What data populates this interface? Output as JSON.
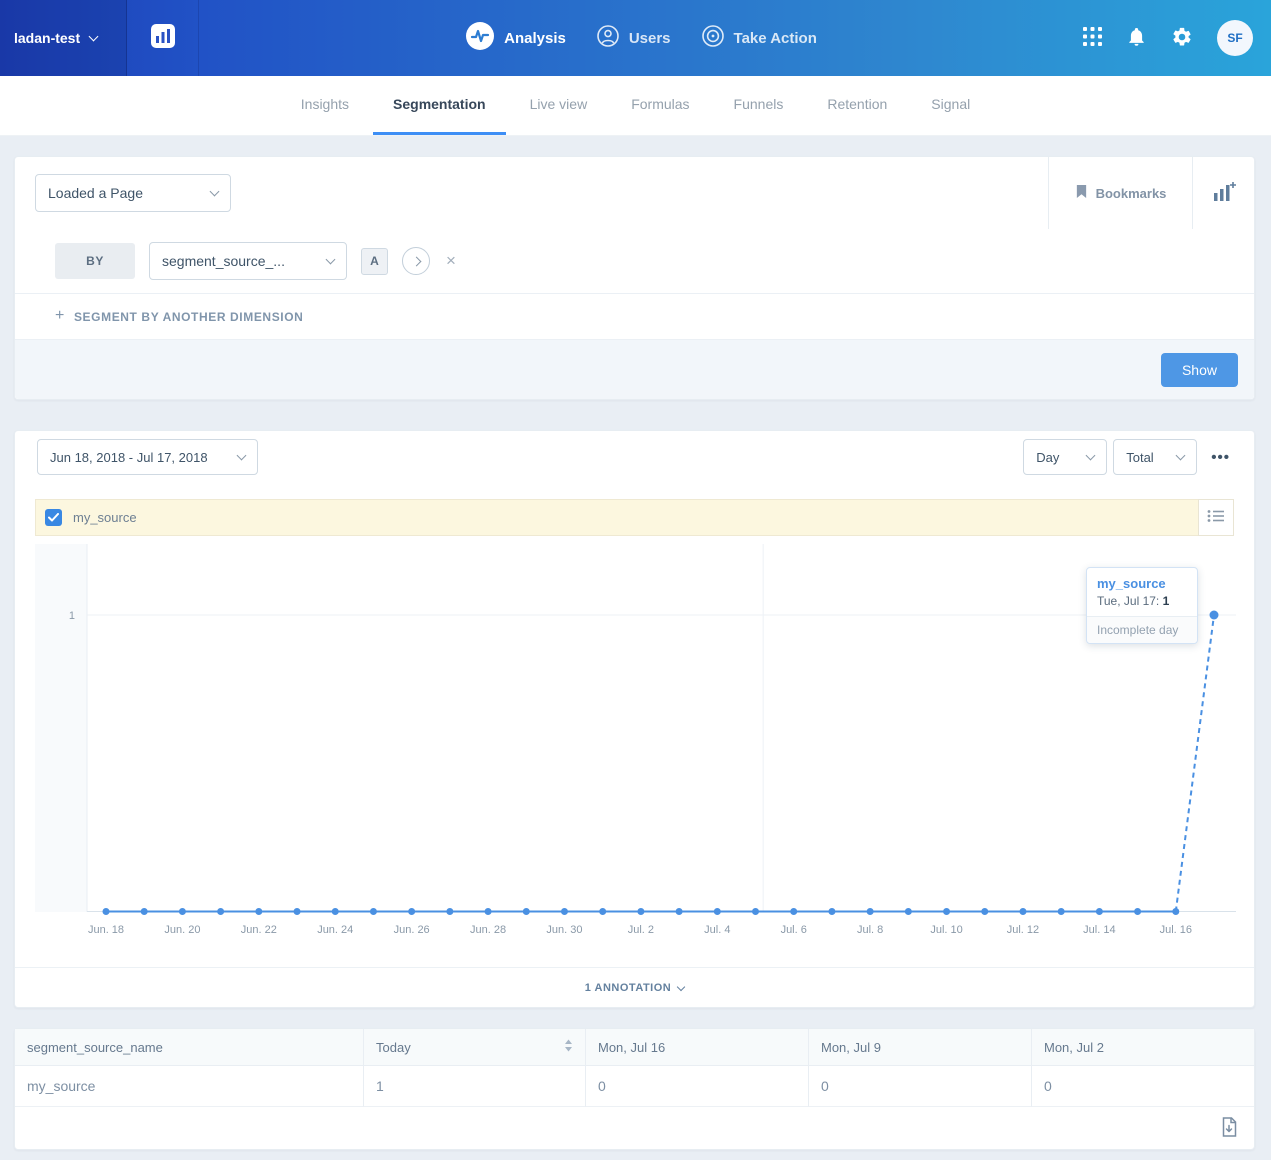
{
  "header": {
    "project": "ladan-test",
    "nav": [
      {
        "label": "Analysis"
      },
      {
        "label": "Users"
      },
      {
        "label": "Take Action"
      }
    ],
    "avatar": "SF"
  },
  "tabs": [
    "Insights",
    "Segmentation",
    "Live view",
    "Formulas",
    "Funnels",
    "Retention",
    "Signal"
  ],
  "query": {
    "event": "Loaded a Page",
    "bookmarks": "Bookmarks",
    "by": "BY",
    "segment": "segment_source_...",
    "group_badge": "A",
    "add_segment": "SEGMENT BY ANOTHER DIMENSION",
    "show": "Show"
  },
  "controls": {
    "date_range": "Jun 18, 2018 - Jul 17, 2018",
    "interval": "Day",
    "metric": "Total"
  },
  "legend": {
    "series": "my_source"
  },
  "chart_data": {
    "type": "line",
    "x": [
      "Jun. 18",
      "Jun. 19",
      "Jun. 20",
      "Jun. 21",
      "Jun. 22",
      "Jun. 23",
      "Jun. 24",
      "Jun. 25",
      "Jun. 26",
      "Jun. 27",
      "Jun. 28",
      "Jun. 29",
      "Jun. 30",
      "Jul. 1",
      "Jul. 2",
      "Jul. 3",
      "Jul. 4",
      "Jul. 5",
      "Jul. 6",
      "Jul. 7",
      "Jul. 8",
      "Jul. 9",
      "Jul. 10",
      "Jul. 11",
      "Jul. 12",
      "Jul. 13",
      "Jul. 14",
      "Jul. 15",
      "Jul. 16",
      "Jul. 17"
    ],
    "series": [
      {
        "name": "my_source",
        "values": [
          0,
          0,
          0,
          0,
          0,
          0,
          0,
          0,
          0,
          0,
          0,
          0,
          0,
          0,
          0,
          0,
          0,
          0,
          0,
          0,
          0,
          0,
          0,
          0,
          0,
          0,
          0,
          0,
          0,
          1
        ]
      }
    ],
    "ylim": [
      0,
      1
    ],
    "y_ticks": [
      1
    ],
    "tick_step": 2,
    "annotation_index": 17.2,
    "incomplete_last": true,
    "line_color": "#4a90e2",
    "title": "",
    "xlabel": "",
    "ylabel": ""
  },
  "tooltip": {
    "series": "my_source",
    "label": "Tue, Jul 17:",
    "value": "1",
    "note": "Incomplete day"
  },
  "annotations": {
    "summary": "1 ANNOTATION"
  },
  "table": {
    "columns": [
      "segment_source_name",
      "Today",
      "Mon, Jul 16",
      "Mon, Jul 9",
      "Mon, Jul 2"
    ],
    "rows": [
      [
        "my_source",
        "1",
        "0",
        "0",
        "0"
      ]
    ]
  },
  "icons": {
    "close": "×",
    "plus": "+",
    "more": "•••"
  },
  "colors": {
    "accent": "#4a90e2",
    "header_left": "#1c3fb6",
    "header_right": "#2aa4da",
    "legend_bg": "#fcf7df",
    "show_button": "#4e97e5"
  }
}
